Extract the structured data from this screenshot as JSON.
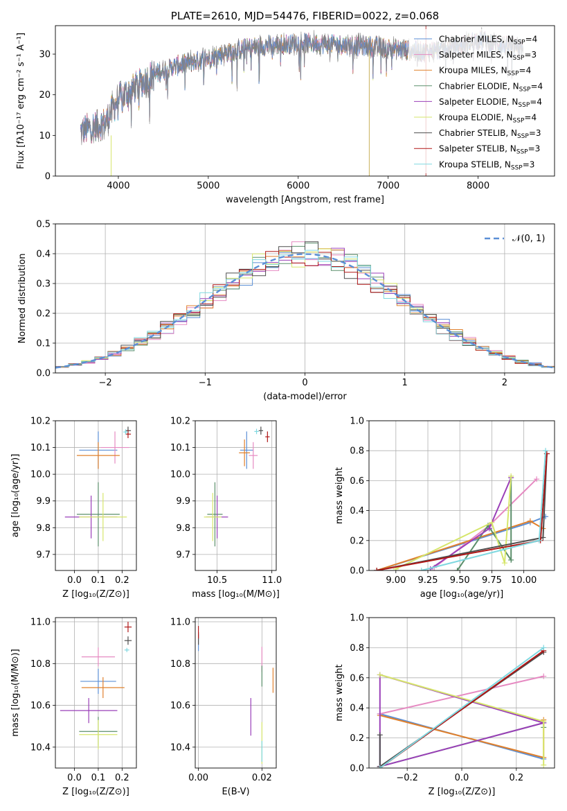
{
  "colors": {
    "Chabrier MILES": "#5b8fd6",
    "Salpeter MILES": "#e68ac2",
    "Kroupa MILES": "#e0802c",
    "Chabrier ELODIE": "#5b8f6b",
    "Salpeter ELODIE": "#9a3fb8",
    "Kroupa ELODIE": "#d6e66b",
    "Chabrier STELIB": "#4d4d4d",
    "Salpeter STELIB": "#b01717",
    "Kroupa STELIB": "#7fd8e0"
  },
  "chart_data": [
    {
      "id": "spectrum",
      "type": "line",
      "title": "PLATE=2610, MJD=54476, FIBERID=0022, z=0.068",
      "xlabel": "wavelength [Angstrom, rest frame]",
      "ylabel": "Flux [fλ10⁻¹⁷ erg cm⁻² s⁻¹ A⁻¹]",
      "xlim": [
        3300,
        8850
      ],
      "ylim": [
        0,
        37
      ],
      "xticks": [
        4000,
        5000,
        6000,
        7000,
        8000
      ],
      "yticks": [
        0,
        10,
        20,
        30
      ],
      "legend_position": "right",
      "legend": [
        {
          "name": "Chabrier MILES",
          "nssp": "=4"
        },
        {
          "name": "Salpeter MILES",
          "nssp": "=3"
        },
        {
          "name": "Kroupa MILES",
          "nssp": "=4"
        },
        {
          "name": "Chabrier ELODIE",
          "nssp": "=4"
        },
        {
          "name": "Salpeter ELODIE",
          "nssp": "=4"
        },
        {
          "name": "Kroupa ELODIE",
          "nssp": "=4"
        },
        {
          "name": "Chabrier STELIB",
          "nssp": "=3"
        },
        {
          "name": "Salpeter STELIB",
          "nssp": "=3"
        },
        {
          "name": "Kroupa STELIB",
          "nssp": "=3"
        }
      ],
      "continuum_anchors": {
        "x": [
          3580,
          3700,
          3850,
          3950,
          4000,
          4200,
          4400,
          4700,
          5000,
          5300,
          5600,
          6000,
          6300,
          6600,
          7000,
          7400,
          7700,
          8000,
          8300,
          8600
        ],
        "y": [
          11,
          12,
          13,
          17,
          19,
          22,
          25,
          27.5,
          29,
          31,
          32,
          32.8,
          32.5,
          32.2,
          31.5,
          30.5,
          31.5,
          33.5,
          32,
          31
        ]
      }
    },
    {
      "id": "residuals",
      "type": "histogram",
      "xlabel": "(data-model)/error",
      "ylabel": "Normed distribution",
      "xlim": [
        -2.5,
        2.5
      ],
      "ylim": [
        0,
        0.5
      ],
      "xticks": [
        -2,
        -1,
        0,
        1,
        2
      ],
      "yticks": [
        0.0,
        0.1,
        0.2,
        0.3,
        0.4,
        0.5
      ],
      "legend_position": "top-right",
      "legend": "𝒩(0, 1)",
      "bins": 38
    },
    {
      "id": "age-vs-Z",
      "type": "errorbar",
      "xlabel": "Z [log₁₀(Z/Z⊙)]",
      "ylabel": "age  [log₁₀(age/yr)]",
      "xlim": [
        -0.08,
        0.26
      ],
      "ylim": [
        9.64,
        10.2
      ],
      "xticks": [
        0.0,
        0.1,
        0.2
      ],
      "yticks": [
        9.7,
        9.8,
        9.9,
        10.0,
        10.1,
        10.2
      ],
      "points": [
        {
          "model": "Chabrier MILES",
          "x": 0.1,
          "xerr": 0.08,
          "y": 10.09,
          "yerr": 0.07
        },
        {
          "model": "Salpeter MILES",
          "x": 0.17,
          "xerr": 0.06,
          "y": 10.1,
          "yerr": 0.06
        },
        {
          "model": "Kroupa MILES",
          "x": 0.1,
          "xerr": 0.09,
          "y": 10.07,
          "yerr": 0.05
        },
        {
          "model": "Chabrier ELODIE",
          "x": 0.1,
          "xerr": 0.09,
          "y": 9.85,
          "yerr": 0.12
        },
        {
          "model": "Salpeter ELODIE",
          "x": 0.07,
          "xerr": 0.11,
          "y": 9.84,
          "yerr": 0.08
        },
        {
          "model": "Kroupa ELODIE",
          "x": 0.12,
          "xerr": 0.1,
          "y": 9.84,
          "yerr": 0.09
        },
        {
          "model": "Chabrier STELIB",
          "x": 0.225,
          "xerr": 0.012,
          "y": 10.163,
          "yerr": 0.015
        },
        {
          "model": "Salpeter STELIB",
          "x": 0.225,
          "xerr": 0.012,
          "y": 10.15,
          "yerr": 0.015
        },
        {
          "model": "Kroupa STELIB",
          "x": 0.215,
          "xerr": 0.01,
          "y": 10.158,
          "yerr": 0.01
        }
      ]
    },
    {
      "id": "age-vs-mass",
      "type": "errorbar",
      "xlabel": "mass [log₁₀(M/M⊙)]",
      "ylabel": "",
      "xlim": [
        10.3,
        11.04
      ],
      "ylim": [
        9.64,
        10.2
      ],
      "xticks": [
        10.5,
        11.0
      ],
      "yticks": [
        9.7,
        9.8,
        9.9,
        10.0,
        10.1,
        10.2
      ],
      "points": [
        {
          "model": "Chabrier MILES",
          "x": 10.77,
          "xerr": 0.06,
          "y": 10.09,
          "yerr": 0.07
        },
        {
          "model": "Salpeter MILES",
          "x": 10.83,
          "xerr": 0.04,
          "y": 10.07,
          "yerr": 0.05
        },
        {
          "model": "Kroupa MILES",
          "x": 10.75,
          "xerr": 0.05,
          "y": 10.08,
          "yerr": 0.05
        },
        {
          "model": "Chabrier ELODIE",
          "x": 10.48,
          "xerr": 0.07,
          "y": 9.85,
          "yerr": 0.12
        },
        {
          "model": "Salpeter ELODIE",
          "x": 10.5,
          "xerr": 0.1,
          "y": 9.84,
          "yerr": 0.08
        },
        {
          "model": "Kroupa ELODIE",
          "x": 10.46,
          "xerr": 0.08,
          "y": 9.84,
          "yerr": 0.09
        },
        {
          "model": "Chabrier STELIB",
          "x": 10.9,
          "xerr": 0.02,
          "y": 10.163,
          "yerr": 0.015
        },
        {
          "model": "Salpeter STELIB",
          "x": 10.96,
          "xerr": 0.02,
          "y": 10.14,
          "yerr": 0.02
        },
        {
          "model": "Kroupa STELIB",
          "x": 10.86,
          "xerr": 0.02,
          "y": 10.16,
          "yerr": 0.01
        }
      ]
    },
    {
      "id": "weight-vs-age",
      "type": "line",
      "xlabel": "age  [log₁₀(age/yr)]",
      "ylabel": "mass weight",
      "xlim": [
        8.79,
        10.24
      ],
      "ylim": [
        0,
        1
      ],
      "xticks": [
        9.0,
        9.25,
        9.5,
        9.75,
        10.0
      ],
      "yticks": [
        0.0,
        0.2,
        0.4,
        0.6,
        0.8,
        1.0
      ],
      "series": [
        {
          "model": "Chabrier MILES",
          "points": [
            [
              8.85,
              0.0
            ],
            [
              10.05,
              0.32
            ],
            [
              10.17,
              0.36
            ]
          ]
        },
        {
          "model": "Salpeter MILES",
          "points": [
            [
              9.3,
              0.02
            ],
            [
              9.73,
              0.3
            ],
            [
              10.1,
              0.61
            ]
          ]
        },
        {
          "model": "Kroupa MILES",
          "points": [
            [
              8.85,
              0.0
            ],
            [
              10.05,
              0.33
            ],
            [
              10.15,
              0.28
            ]
          ]
        },
        {
          "model": "Chabrier ELODIE",
          "points": [
            [
              9.48,
              0.0
            ],
            [
              9.72,
              0.3
            ],
            [
              9.9,
              0.07
            ],
            [
              9.9,
              0.62
            ]
          ]
        },
        {
          "model": "Salpeter ELODIE",
          "points": [
            [
              9.27,
              0.01
            ],
            [
              9.73,
              0.28
            ],
            [
              9.9,
              0.62
            ]
          ]
        },
        {
          "model": "Kroupa ELODIE",
          "points": [
            [
              9.0,
              0.01
            ],
            [
              9.75,
              0.32
            ],
            [
              9.85,
              0.05
            ],
            [
              9.9,
              0.63
            ]
          ]
        },
        {
          "model": "Chabrier STELIB",
          "points": [
            [
              8.85,
              0.0
            ],
            [
              10.15,
              0.22
            ],
            [
              10.18,
              0.78
            ]
          ]
        },
        {
          "model": "Salpeter STELIB",
          "points": [
            [
              8.85,
              0.0
            ],
            [
              10.13,
              0.2
            ],
            [
              10.18,
              0.78
            ]
          ]
        },
        {
          "model": "Kroupa STELIB",
          "points": [
            [
              9.2,
              0.0
            ],
            [
              10.12,
              0.2
            ],
            [
              10.17,
              0.8
            ]
          ]
        }
      ]
    },
    {
      "id": "mass-vs-Z",
      "type": "errorbar",
      "xlabel": "Z [log₁₀(Z/Z⊙)]",
      "ylabel": "mass [log₁₀(M/M⊙)]",
      "xlim": [
        -0.08,
        0.26
      ],
      "ylim": [
        10.3,
        11.02
      ],
      "xticks": [
        0.0,
        0.1,
        0.2
      ],
      "yticks": [
        10.4,
        10.6,
        10.8,
        11.0
      ],
      "points": [
        {
          "model": "Chabrier MILES",
          "x": 0.1,
          "xerr": 0.075,
          "y": 10.715,
          "yerr": 0.06
        },
        {
          "model": "Salpeter MILES",
          "x": 0.1,
          "xerr": 0.07,
          "y": 10.832,
          "yerr": 0.045
        },
        {
          "model": "Kroupa MILES",
          "x": 0.12,
          "xerr": 0.09,
          "y": 10.685,
          "yerr": 0.05
        },
        {
          "model": "Chabrier ELODIE",
          "x": 0.1,
          "xerr": 0.08,
          "y": 10.475,
          "yerr": 0.07
        },
        {
          "model": "Salpeter ELODIE",
          "x": 0.06,
          "xerr": 0.12,
          "y": 10.575,
          "yerr": 0.06
        },
        {
          "model": "Kroupa ELODIE",
          "x": 0.1,
          "xerr": 0.08,
          "y": 10.46,
          "yerr": 0.07
        },
        {
          "model": "Chabrier STELIB",
          "x": 0.225,
          "xerr": 0.015,
          "y": 10.91,
          "yerr": 0.02
        },
        {
          "model": "Salpeter STELIB",
          "x": 0.225,
          "xerr": 0.015,
          "y": 10.975,
          "yerr": 0.025
        },
        {
          "model": "Kroupa STELIB",
          "x": 0.22,
          "xerr": 0.01,
          "y": 10.865,
          "yerr": 0.01
        }
      ]
    },
    {
      "id": "mass-vs-ebv",
      "type": "errorbar",
      "xlabel": "E(B-V)",
      "ylabel": "",
      "xlim": [
        -0.001,
        0.0245
      ],
      "ylim": [
        10.3,
        11.02
      ],
      "xticks": [
        0.0,
        0.02
      ],
      "yticks": [
        10.4,
        10.6,
        10.8,
        11.0
      ],
      "points": [
        {
          "model": "Chabrier MILES",
          "x": 0.0,
          "xerr": 0.0,
          "y": 10.9,
          "yerr": 0.04
        },
        {
          "model": "Salpeter MILES",
          "x": 0.02,
          "xerr": 0.0,
          "y": 10.82,
          "yerr": 0.06
        },
        {
          "model": "Kroupa MILES",
          "x": 0.0235,
          "xerr": 0.0,
          "y": 10.72,
          "yerr": 0.06
        },
        {
          "model": "Chabrier ELODIE",
          "x": 0.02,
          "xerr": 0.0,
          "y": 10.74,
          "yerr": 0.05
        },
        {
          "model": "Salpeter ELODIE",
          "x": 0.0165,
          "xerr": 0.0,
          "y": 10.545,
          "yerr": 0.09
        },
        {
          "model": "Kroupa ELODIE",
          "x": 0.02,
          "xerr": 0.0,
          "y": 10.42,
          "yerr": 0.1
        },
        {
          "model": "Chabrier STELIB",
          "x": 0.0,
          "xerr": 0.0,
          "y": 10.92,
          "yerr": 0.03
        },
        {
          "model": "Salpeter STELIB",
          "x": 0.0,
          "xerr": 0.0,
          "y": 10.95,
          "yerr": 0.03
        },
        {
          "model": "Kroupa STELIB",
          "x": 0.02,
          "xerr": 0.0,
          "y": 10.38,
          "yerr": 0.05
        }
      ]
    },
    {
      "id": "weight-vs-Z",
      "type": "line",
      "xlabel": "Z [log₁₀(Z/Z⊙)]",
      "ylabel": "mass weight",
      "xlim": [
        -0.34,
        0.34
      ],
      "ylim": [
        0,
        1
      ],
      "xticks": [
        -0.2,
        0.0,
        0.2
      ],
      "yticks": [
        0.0,
        0.2,
        0.4,
        0.6,
        0.8,
        1.0
      ],
      "series": [
        {
          "model": "Chabrier MILES",
          "points": [
            [
              -0.3,
              0.36
            ],
            [
              0.3,
              0.06
            ]
          ]
        },
        {
          "model": "Salpeter MILES",
          "points": [
            [
              -0.3,
              0.36
            ],
            [
              0.3,
              0.61
            ]
          ]
        },
        {
          "model": "Kroupa MILES",
          "points": [
            [
              -0.3,
              0.35
            ],
            [
              0.3,
              0.07
            ],
            [
              0.3,
              0.32
            ]
          ]
        },
        {
          "model": "Chabrier ELODIE",
          "points": [
            [
              -0.3,
              0.01
            ],
            [
              0.3,
              0.3
            ],
            [
              0.3,
              0.27
            ]
          ]
        },
        {
          "model": "Salpeter ELODIE",
          "points": [
            [
              -0.3,
              0.01
            ],
            [
              0.3,
              0.3
            ],
            [
              -0.3,
              0.62
            ],
            [
              -0.3,
              0.01
            ]
          ]
        },
        {
          "model": "Kroupa ELODIE",
          "points": [
            [
              -0.3,
              0.62
            ],
            [
              0.3,
              0.31
            ],
            [
              0.3,
              0.02
            ]
          ]
        },
        {
          "model": "Chabrier STELIB",
          "points": [
            [
              -0.3,
              0.22
            ],
            [
              -0.3,
              0.01
            ],
            [
              0.3,
              0.77
            ]
          ]
        },
        {
          "model": "Salpeter STELIB",
          "points": [
            [
              -0.3,
              0.0
            ],
            [
              0.3,
              0.78
            ]
          ]
        },
        {
          "model": "Kroupa STELIB",
          "points": [
            [
              -0.3,
              0.0
            ],
            [
              0.3,
              0.8
            ]
          ]
        }
      ]
    }
  ]
}
